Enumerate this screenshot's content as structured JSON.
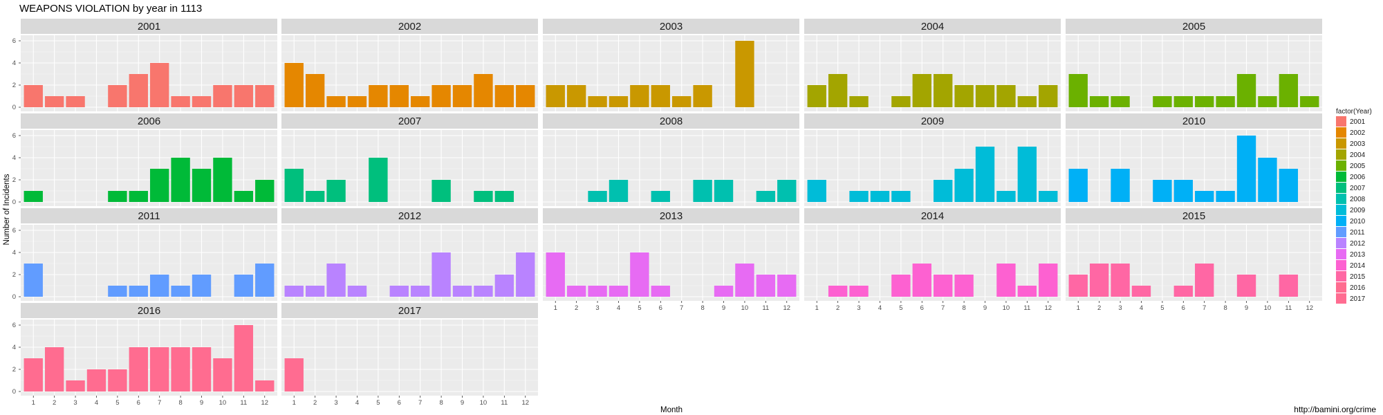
{
  "chart_data": {
    "type": "bar",
    "title": "WEAPONS VIOLATION by year in 1113",
    "xlabel": "Month",
    "ylabel": "Number of Incidents",
    "caption": "http://bamini.org/crime",
    "legend_title": "factor(Year)",
    "legend_position": "right",
    "grid": true,
    "ylim": [
      0,
      6.5
    ],
    "y_ticks": [
      "0",
      "2",
      "4",
      "6"
    ],
    "x_ticks": [
      "1",
      "2",
      "3",
      "4",
      "5",
      "6",
      "7",
      "8",
      "9",
      "10",
      "11",
      "12"
    ],
    "panels": [
      {
        "year": "2001",
        "color": "#F8766D",
        "values": [
          2,
          1,
          1,
          0,
          2,
          3,
          4,
          1,
          1,
          2,
          2,
          2
        ]
      },
      {
        "year": "2002",
        "color": "#E58700",
        "values": [
          4,
          3,
          1,
          1,
          2,
          2,
          1,
          2,
          2,
          3,
          2,
          2
        ]
      },
      {
        "year": "2003",
        "color": "#C99800",
        "values": [
          2,
          2,
          1,
          1,
          2,
          2,
          1,
          2,
          0,
          6,
          0,
          0
        ]
      },
      {
        "year": "2004",
        "color": "#A3A500",
        "values": [
          2,
          3,
          1,
          0,
          1,
          3,
          3,
          2,
          2,
          2,
          1,
          2
        ]
      },
      {
        "year": "2005",
        "color": "#6BB100",
        "values": [
          3,
          1,
          1,
          0,
          1,
          1,
          1,
          1,
          3,
          1,
          3,
          1
        ]
      },
      {
        "year": "2006",
        "color": "#00BA38",
        "values": [
          1,
          0,
          0,
          0,
          1,
          1,
          3,
          4,
          3,
          4,
          1,
          2
        ]
      },
      {
        "year": "2007",
        "color": "#00BF7D",
        "values": [
          3,
          1,
          2,
          0,
          4,
          0,
          0,
          2,
          0,
          1,
          1,
          0
        ]
      },
      {
        "year": "2008",
        "color": "#00C0AF",
        "values": [
          0,
          0,
          1,
          2,
          0,
          1,
          0,
          2,
          2,
          0,
          1,
          2
        ]
      },
      {
        "year": "2009",
        "color": "#00BCD8",
        "values": [
          2,
          0,
          1,
          1,
          1,
          0,
          2,
          3,
          5,
          1,
          5,
          1
        ]
      },
      {
        "year": "2010",
        "color": "#00B0F6",
        "values": [
          3,
          0,
          3,
          0,
          2,
          2,
          1,
          1,
          6,
          4,
          3,
          0
        ]
      },
      {
        "year": "2011",
        "color": "#619CFF",
        "values": [
          3,
          0,
          0,
          0,
          1,
          1,
          2,
          1,
          2,
          0,
          2,
          3
        ]
      },
      {
        "year": "2012",
        "color": "#B983FF",
        "values": [
          1,
          1,
          3,
          1,
          0,
          1,
          1,
          4,
          1,
          1,
          2,
          4
        ]
      },
      {
        "year": "2013",
        "color": "#E76BF3",
        "values": [
          4,
          1,
          1,
          1,
          4,
          1,
          0,
          0,
          1,
          3,
          2,
          2
        ]
      },
      {
        "year": "2014",
        "color": "#FD61D1",
        "values": [
          0,
          1,
          1,
          0,
          2,
          3,
          2,
          2,
          0,
          3,
          1,
          3
        ]
      },
      {
        "year": "2015",
        "color": "#FF67A4",
        "values": [
          2,
          3,
          3,
          1,
          0,
          1,
          3,
          0,
          2,
          0,
          2,
          0
        ]
      },
      {
        "year": "2016",
        "color": "#FF6C90",
        "values": [
          3,
          4,
          1,
          2,
          2,
          4,
          4,
          4,
          4,
          3,
          6,
          1
        ]
      },
      {
        "year": "2017",
        "color": "#FF6C91",
        "values": [
          3,
          0,
          0,
          0,
          0,
          0,
          0,
          0,
          0,
          0,
          0,
          0
        ]
      }
    ]
  }
}
